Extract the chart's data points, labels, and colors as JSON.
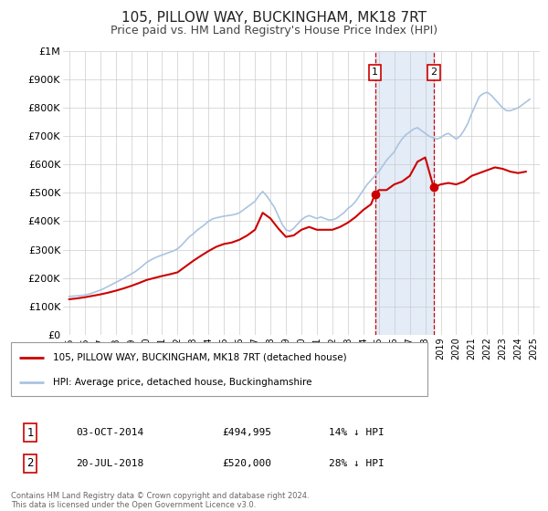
{
  "title": "105, PILLOW WAY, BUCKINGHAM, MK18 7RT",
  "subtitle": "Price paid vs. HM Land Registry's House Price Index (HPI)",
  "title_fontsize": 11,
  "subtitle_fontsize": 9,
  "background_color": "#ffffff",
  "plot_bg_color": "#ffffff",
  "grid_color": "#cccccc",
  "hpi_color": "#aac4e0",
  "price_color": "#cc0000",
  "marker_color": "#cc0000",
  "ylim": [
    0,
    1000000
  ],
  "yticks": [
    0,
    100000,
    200000,
    300000,
    400000,
    500000,
    600000,
    700000,
    800000,
    900000,
    1000000
  ],
  "ytick_labels": [
    "£0",
    "£100K",
    "£200K",
    "£300K",
    "£400K",
    "£500K",
    "£600K",
    "£700K",
    "£800K",
    "£900K",
    "£1M"
  ],
  "xlim_start": 1994.6,
  "xlim_end": 2025.4,
  "xtick_years": [
    1995,
    1996,
    1997,
    1998,
    1999,
    2000,
    2001,
    2002,
    2003,
    2004,
    2005,
    2006,
    2007,
    2008,
    2009,
    2010,
    2011,
    2012,
    2013,
    2014,
    2015,
    2016,
    2017,
    2018,
    2019,
    2020,
    2021,
    2022,
    2023,
    2024,
    2025
  ],
  "sale1_x": 2014.75,
  "sale1_y": 494995,
  "sale1_label": "1",
  "sale2_x": 2018.54,
  "sale2_y": 520000,
  "sale2_label": "2",
  "legend_line1": "105, PILLOW WAY, BUCKINGHAM, MK18 7RT (detached house)",
  "legend_line2": "HPI: Average price, detached house, Buckinghamshire",
  "table_row1_num": "1",
  "table_row1_date": "03-OCT-2014",
  "table_row1_price": "£494,995",
  "table_row1_hpi": "14% ↓ HPI",
  "table_row2_num": "2",
  "table_row2_date": "20-JUL-2018",
  "table_row2_price": "£520,000",
  "table_row2_hpi": "28% ↓ HPI",
  "footer": "Contains HM Land Registry data © Crown copyright and database right 2024.\nThis data is licensed under the Open Government Licence v3.0.",
  "hpi_data_x": [
    1995.0,
    1995.25,
    1995.5,
    1995.75,
    1996.0,
    1996.25,
    1996.5,
    1996.75,
    1997.0,
    1997.25,
    1997.5,
    1997.75,
    1998.0,
    1998.25,
    1998.5,
    1998.75,
    1999.0,
    1999.25,
    1999.5,
    1999.75,
    2000.0,
    2000.25,
    2000.5,
    2000.75,
    2001.0,
    2001.25,
    2001.5,
    2001.75,
    2002.0,
    2002.25,
    2002.5,
    2002.75,
    2003.0,
    2003.25,
    2003.5,
    2003.75,
    2004.0,
    2004.25,
    2004.5,
    2004.75,
    2005.0,
    2005.25,
    2005.5,
    2005.75,
    2006.0,
    2006.25,
    2006.5,
    2006.75,
    2007.0,
    2007.25,
    2007.5,
    2007.75,
    2008.0,
    2008.25,
    2008.5,
    2008.75,
    2009.0,
    2009.25,
    2009.5,
    2009.75,
    2010.0,
    2010.25,
    2010.5,
    2010.75,
    2011.0,
    2011.25,
    2011.5,
    2011.75,
    2012.0,
    2012.25,
    2012.5,
    2012.75,
    2013.0,
    2013.25,
    2013.5,
    2013.75,
    2014.0,
    2014.25,
    2014.5,
    2014.75,
    2015.0,
    2015.25,
    2015.5,
    2015.75,
    2016.0,
    2016.25,
    2016.5,
    2016.75,
    2017.0,
    2017.25,
    2017.5,
    2017.75,
    2018.0,
    2018.25,
    2018.5,
    2018.75,
    2019.0,
    2019.25,
    2019.5,
    2019.75,
    2020.0,
    2020.25,
    2020.5,
    2020.75,
    2021.0,
    2021.25,
    2021.5,
    2021.75,
    2022.0,
    2022.25,
    2022.5,
    2022.75,
    2023.0,
    2023.25,
    2023.5,
    2023.75,
    2024.0,
    2024.25,
    2024.5,
    2024.75
  ],
  "hpi_data_y": [
    135000,
    136000,
    137000,
    138000,
    140000,
    143000,
    147000,
    152000,
    157000,
    163000,
    170000,
    177000,
    184000,
    191000,
    198000,
    206000,
    214000,
    222000,
    232000,
    243000,
    255000,
    263000,
    270000,
    276000,
    281000,
    286000,
    291000,
    296000,
    303000,
    315000,
    330000,
    345000,
    355000,
    368000,
    378000,
    388000,
    400000,
    408000,
    412000,
    415000,
    418000,
    420000,
    422000,
    425000,
    430000,
    440000,
    450000,
    460000,
    470000,
    490000,
    505000,
    490000,
    470000,
    450000,
    420000,
    390000,
    370000,
    365000,
    375000,
    390000,
    405000,
    415000,
    420000,
    415000,
    410000,
    415000,
    410000,
    405000,
    405000,
    410000,
    420000,
    430000,
    445000,
    455000,
    470000,
    490000,
    510000,
    530000,
    545000,
    560000,
    575000,
    595000,
    615000,
    630000,
    645000,
    670000,
    690000,
    705000,
    715000,
    725000,
    730000,
    720000,
    710000,
    700000,
    695000,
    690000,
    695000,
    705000,
    710000,
    700000,
    690000,
    700000,
    720000,
    745000,
    780000,
    810000,
    840000,
    850000,
    855000,
    845000,
    830000,
    815000,
    800000,
    790000,
    790000,
    795000,
    800000,
    810000,
    820000,
    830000
  ],
  "price_data_x": [
    1995.0,
    1995.5,
    1996.0,
    1996.5,
    1997.0,
    1997.5,
    1998.0,
    1998.5,
    1999.0,
    1999.5,
    2000.0,
    2000.5,
    2001.0,
    2001.5,
    2002.0,
    2002.5,
    2003.0,
    2003.5,
    2004.0,
    2004.5,
    2005.0,
    2005.5,
    2006.0,
    2006.5,
    2007.0,
    2007.5,
    2008.0,
    2008.5,
    2009.0,
    2009.5,
    2010.0,
    2010.5,
    2011.0,
    2011.5,
    2012.0,
    2012.5,
    2013.0,
    2013.5,
    2014.0,
    2014.5,
    2014.75,
    2015.0,
    2015.5,
    2016.0,
    2016.5,
    2017.0,
    2017.5,
    2018.0,
    2018.54,
    2019.0,
    2019.5,
    2020.0,
    2020.5,
    2021.0,
    2021.5,
    2022.0,
    2022.5,
    2023.0,
    2023.5,
    2024.0,
    2024.5
  ],
  "price_data_y": [
    125000,
    128000,
    132000,
    137000,
    142000,
    148000,
    155000,
    163000,
    172000,
    182000,
    193000,
    200000,
    207000,
    213000,
    220000,
    240000,
    260000,
    278000,
    295000,
    310000,
    320000,
    325000,
    335000,
    350000,
    370000,
    430000,
    410000,
    375000,
    345000,
    350000,
    370000,
    380000,
    370000,
    370000,
    370000,
    380000,
    395000,
    415000,
    440000,
    460000,
    494995,
    510000,
    510000,
    530000,
    540000,
    560000,
    610000,
    625000,
    520000,
    530000,
    535000,
    530000,
    540000,
    560000,
    570000,
    580000,
    590000,
    585000,
    575000,
    570000,
    575000
  ]
}
